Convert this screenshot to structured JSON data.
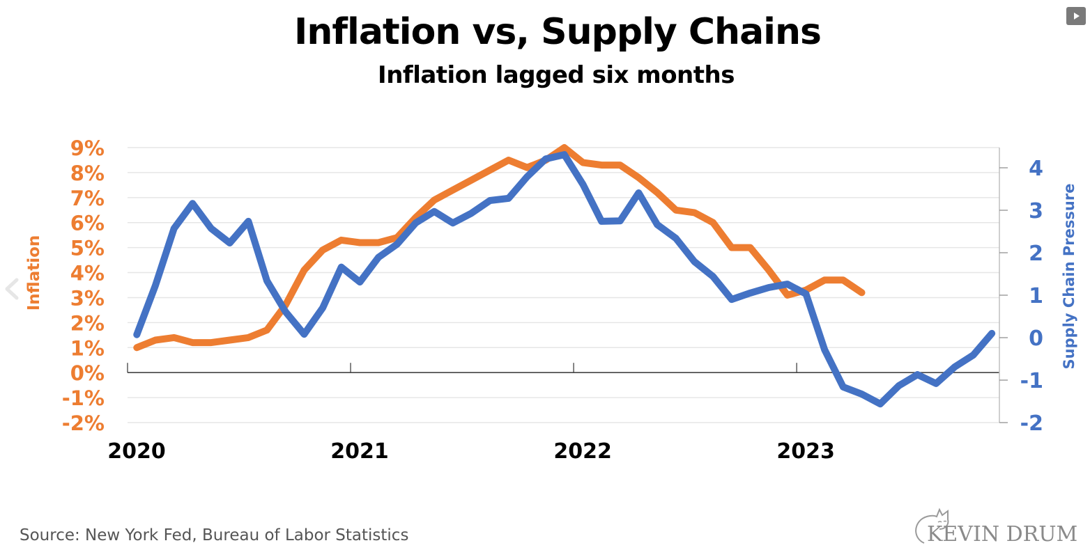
{
  "header": {
    "title": "Inflation vs, Supply Chains",
    "subtitle": "Inflation lagged six months"
  },
  "footer": {
    "source": "Source: New York Fed, Bureau of Labor Statistics",
    "logo_text": "KEVIN DRUM"
  },
  "controls": {
    "play_icon": "play-icon",
    "prev_icon": "chevron-left-icon"
  },
  "colors": {
    "inflation": "#ED7D31",
    "supply_chain": "#4472C4",
    "gridline": "#E6E6E6",
    "axis": "#333333"
  },
  "chart_data": {
    "type": "line",
    "title": "Inflation vs, Supply Chains",
    "subtitle": "Inflation lagged six months",
    "xlabel": "",
    "x_ticks": [
      "2020",
      "2021",
      "2022",
      "2023"
    ],
    "x_start": "2020-01",
    "x_unit": "month",
    "grid": true,
    "left_axis": {
      "label": "Inflation",
      "ylim": [
        -2,
        9
      ],
      "ticks": [
        9,
        8,
        7,
        6,
        5,
        4,
        3,
        2,
        1,
        0,
        -1,
        -2
      ],
      "tick_labels": [
        "9%",
        "8%",
        "7%",
        "6%",
        "5%",
        "4%",
        "3%",
        "2%",
        "1%",
        "0%",
        "-1%",
        "-2%"
      ]
    },
    "right_axis": {
      "label": "Supply Chain Pressure",
      "ylim": [
        -2,
        4.4
      ],
      "ticks": [
        4,
        3,
        2,
        1,
        0,
        -1,
        -2
      ],
      "tick_labels": [
        "4",
        "3",
        "2",
        "1",
        "0",
        "-1",
        "-2"
      ]
    },
    "series": [
      {
        "name": "Inflation",
        "axis": "left",
        "color": "#ED7D31",
        "values": [
          1.0,
          1.3,
          1.4,
          1.2,
          1.2,
          1.3,
          1.4,
          1.7,
          2.7,
          4.1,
          4.9,
          5.3,
          5.2,
          5.2,
          5.4,
          6.2,
          6.9,
          7.3,
          7.7,
          8.1,
          8.5,
          8.2,
          8.5,
          9.0,
          8.4,
          8.3,
          8.3,
          7.8,
          7.2,
          6.5,
          6.4,
          6.0,
          5.0,
          5.0,
          4.1,
          3.1,
          3.3,
          3.7,
          3.7,
          3.2
        ]
      },
      {
        "name": "Supply Chain Pressure",
        "axis": "right",
        "color": "#4472C4",
        "values": [
          0.07,
          1.23,
          2.57,
          3.16,
          2.57,
          2.23,
          2.74,
          1.34,
          0.61,
          0.08,
          0.7,
          1.66,
          1.31,
          1.89,
          2.2,
          2.7,
          2.97,
          2.7,
          2.93,
          3.23,
          3.28,
          3.79,
          4.21,
          4.31,
          3.61,
          2.74,
          2.75,
          3.41,
          2.66,
          2.34,
          1.79,
          1.44,
          0.9,
          1.05,
          1.18,
          1.26,
          1.03,
          -0.28,
          -1.16,
          -1.33,
          -1.56,
          -1.13,
          -0.87,
          -1.08,
          -0.69,
          -0.41,
          0.1
        ]
      }
    ]
  }
}
